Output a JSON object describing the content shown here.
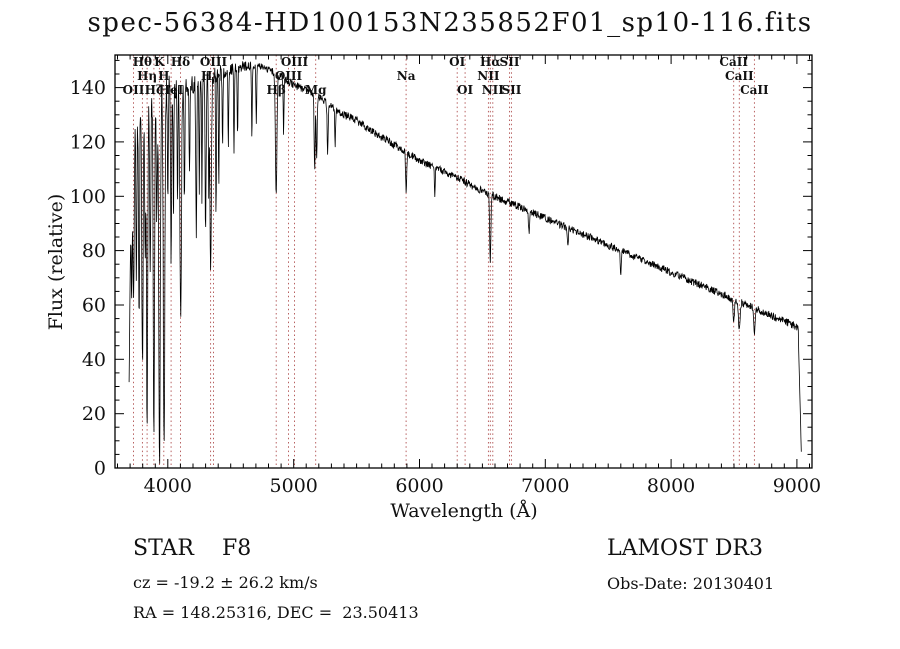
{
  "title": "spec-56384-HD100153N235852F01_sp10-116.fits",
  "annotations": {
    "class_line": "STAR    F8",
    "survey": "LAMOST DR3",
    "cz": "cz = -19.2 ± 26.2 km/s",
    "obs_date": "Obs-Date: 20130401",
    "radec": "RA = 148.25316, DEC =  23.50413"
  },
  "chart_data": {
    "type": "line",
    "series_name": "spectrum",
    "title": "spec-56384-HD100153N235852F01_sp10-116.fits",
    "xlabel": "Wavelength (Å)",
    "ylabel": "Flux (relative)",
    "xlim": [
      3580,
      9120
    ],
    "ylim": [
      0,
      152
    ],
    "xticks": [
      4000,
      5000,
      6000,
      7000,
      8000,
      9000
    ],
    "yticks": [
      0,
      20,
      40,
      60,
      80,
      100,
      120,
      140
    ],
    "x_minor_step": 100,
    "y_minor_step": 5,
    "x_minor_range": [
      3600,
      9100
    ],
    "y_minor_range": [
      0,
      150
    ],
    "grid": false,
    "line_color": "#000000",
    "marker_line_color": "#b05050",
    "marker_label_color": "#8b1a1a",
    "continuum": [
      [
        3692,
        118
      ],
      [
        3750,
        128
      ],
      [
        3820,
        133
      ],
      [
        3900,
        137
      ],
      [
        4000,
        140
      ],
      [
        4150,
        141
      ],
      [
        4300,
        143
      ],
      [
        4450,
        146
      ],
      [
        4600,
        148
      ],
      [
        4750,
        148
      ],
      [
        4900,
        144
      ],
      [
        5000,
        141
      ],
      [
        5100,
        139
      ],
      [
        5200,
        137
      ],
      [
        5350,
        131
      ],
      [
        5500,
        128
      ],
      [
        5650,
        123
      ],
      [
        5800,
        119
      ],
      [
        5900,
        116
      ],
      [
        6000,
        113
      ],
      [
        6150,
        110
      ],
      [
        6300,
        107
      ],
      [
        6450,
        103
      ],
      [
        6600,
        100
      ],
      [
        6750,
        97
      ],
      [
        6900,
        94
      ],
      [
        7050,
        91
      ],
      [
        7200,
        88
      ],
      [
        7350,
        85
      ],
      [
        7500,
        82
      ],
      [
        7650,
        79
      ],
      [
        7800,
        76
      ],
      [
        7950,
        73
      ],
      [
        8100,
        70
      ],
      [
        8250,
        67
      ],
      [
        8400,
        64
      ],
      [
        8550,
        61
      ],
      [
        8700,
        58
      ],
      [
        8850,
        55
      ],
      [
        9000,
        52
      ],
      [
        9040,
        50
      ]
    ],
    "absorption_lines": [
      [
        3712,
        55,
        4
      ],
      [
        3727,
        65,
        5
      ],
      [
        3750,
        60,
        4
      ],
      [
        3771,
        75,
        4
      ],
      [
        3798,
        95,
        5
      ],
      [
        3820,
        55,
        4
      ],
      [
        3835,
        115,
        5
      ],
      [
        3860,
        65,
        4
      ],
      [
        3889,
        128,
        5
      ],
      [
        3912,
        50,
        4
      ],
      [
        3934,
        137,
        6
      ],
      [
        3970,
        132,
        6
      ],
      [
        4000,
        45,
        3
      ],
      [
        4026,
        65,
        4
      ],
      [
        4045,
        50,
        3
      ],
      [
        4077,
        40,
        3
      ],
      [
        4102,
        85,
        6
      ],
      [
        4132,
        45,
        3
      ],
      [
        4172,
        35,
        3
      ],
      [
        4226,
        55,
        4
      ],
      [
        4250,
        40,
        3
      ],
      [
        4271,
        45,
        3
      ],
      [
        4300,
        55,
        4
      ],
      [
        4325,
        40,
        3
      ],
      [
        4340,
        70,
        6
      ],
      [
        4383,
        55,
        3
      ],
      [
        4405,
        40,
        3
      ],
      [
        4435,
        30,
        3
      ],
      [
        4481,
        30,
        3
      ],
      [
        4526,
        30,
        3
      ],
      [
        4554,
        25,
        3
      ],
      [
        4668,
        28,
        3
      ],
      [
        4703,
        22,
        3
      ],
      [
        4861,
        45,
        6
      ],
      [
        4920,
        22,
        3
      ],
      [
        5167,
        28,
        4
      ],
      [
        5183,
        24,
        4
      ],
      [
        5270,
        18,
        4
      ],
      [
        5330,
        14,
        3
      ],
      [
        5894,
        16,
        4
      ],
      [
        6122,
        10,
        3
      ],
      [
        6563,
        24,
        5
      ],
      [
        6870,
        8,
        4
      ],
      [
        7180,
        6,
        4
      ],
      [
        7600,
        8,
        5
      ],
      [
        8498,
        9,
        5
      ],
      [
        8542,
        11,
        6
      ],
      [
        8662,
        9,
        5
      ]
    ],
    "noise": {
      "base": 1.4,
      "blue_extra": 5,
      "blue_cutoff": 4700
    },
    "edge": {
      "start": 3692,
      "left_end": 3712,
      "right_drop_start": 9010,
      "end": 9035,
      "right_floor": 6
    },
    "spectral_markers": [
      {
        "wl": 3798,
        "label": "Hθ",
        "row": 1
      },
      {
        "wl": 3933,
        "label": "K",
        "row": 1
      },
      {
        "wl": 4101,
        "label": "Hδ",
        "row": 1
      },
      {
        "wl": 4363,
        "label": "OIII",
        "row": 1
      },
      {
        "wl": 5007,
        "label": "OIII",
        "row": 1
      },
      {
        "wl": 6300,
        "label": "OI",
        "row": 1
      },
      {
        "wl": 6563,
        "label": "Hα",
        "row": 1
      },
      {
        "wl": 6716,
        "label": "SII",
        "row": 1
      },
      {
        "wl": 8498,
        "label": "CaII",
        "row": 1
      },
      {
        "wl": 3835,
        "label": "Hη",
        "row": 2
      },
      {
        "wl": 3968,
        "label": "H",
        "row": 2
      },
      {
        "wl": 4340,
        "label": "Hγ",
        "row": 2
      },
      {
        "wl": 4959,
        "label": "OIII",
        "row": 2
      },
      {
        "wl": 5894,
        "label": "Na",
        "row": 2
      },
      {
        "wl": 6548,
        "label": "NII",
        "row": 2
      },
      {
        "wl": 8542,
        "label": "CaII",
        "row": 2
      },
      {
        "wl": 3727,
        "label": "OII",
        "row": 3
      },
      {
        "wl": 3889,
        "label": "Hζ",
        "row": 3
      },
      {
        "wl": 4026,
        "label": "HeI",
        "row": 3
      },
      {
        "wl": 4861,
        "label": "Hβ",
        "row": 3
      },
      {
        "wl": 5175,
        "label": "Mg",
        "row": 3
      },
      {
        "wl": 6363,
        "label": "OI",
        "row": 3
      },
      {
        "wl": 6583,
        "label": "NII",
        "row": 3
      },
      {
        "wl": 6731,
        "label": "SII",
        "row": 3
      },
      {
        "wl": 8662,
        "label": "CaII",
        "row": 3
      }
    ]
  }
}
